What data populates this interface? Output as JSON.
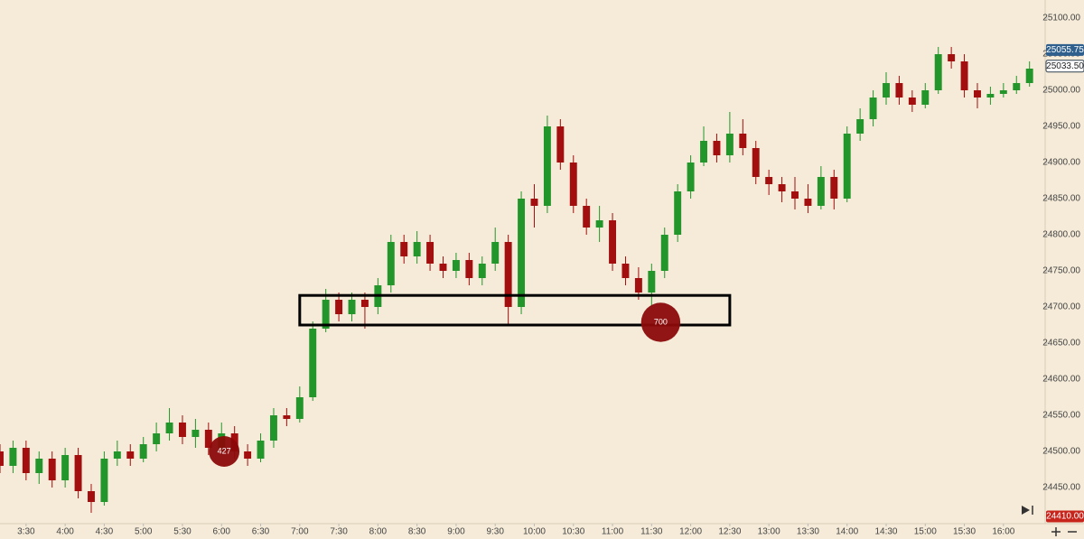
{
  "chart_data": {
    "type": "candlestick",
    "open": [
      24500,
      24480,
      24505,
      24470,
      24490,
      24460,
      24495,
      24445,
      24430,
      24490,
      24500,
      24490,
      24510,
      24525,
      24540,
      24520,
      24530,
      24505,
      24525,
      24500,
      24490,
      24515,
      24550,
      24545,
      24575,
      24670,
      24710,
      24690,
      24710,
      24700,
      24730,
      24790,
      24770,
      24790,
      24760,
      24750,
      24765,
      24740,
      24760,
      24790,
      24700,
      24850,
      24840,
      24950,
      24900,
      24840,
      24810,
      24820,
      24760,
      24740,
      24720,
      24750,
      24800,
      24860,
      24900,
      24930,
      24910,
      24940,
      24920,
      24880,
      24870,
      24860,
      24850,
      24840,
      24880,
      24850,
      24940,
      24960,
      24990,
      25010,
      24990,
      24980,
      25000,
      25050,
      25040,
      25000,
      24990,
      24995,
      25000,
      25010
    ],
    "high": [
      24510,
      24515,
      24515,
      24500,
      24500,
      24505,
      24505,
      24455,
      24500,
      24515,
      24510,
      24520,
      24540,
      24560,
      24550,
      24545,
      24540,
      24540,
      24535,
      24510,
      24525,
      24560,
      24560,
      24590,
      24680,
      24725,
      24720,
      24720,
      24720,
      24740,
      24800,
      24800,
      24805,
      24800,
      24770,
      24775,
      24775,
      24770,
      24810,
      24800,
      24860,
      24870,
      24965,
      24960,
      24910,
      24850,
      24840,
      24830,
      24770,
      24755,
      24760,
      24810,
      24870,
      24910,
      24950,
      24940,
      24970,
      24960,
      24930,
      24890,
      24880,
      24880,
      24870,
      24895,
      24890,
      24950,
      24975,
      25000,
      25025,
      25020,
      25000,
      25010,
      25060,
      25060,
      25050,
      25010,
      25005,
      25010,
      25020,
      25040
    ],
    "low": [
      24470,
      24470,
      24460,
      24455,
      24450,
      24450,
      24435,
      24415,
      24425,
      24480,
      24480,
      24485,
      24500,
      24515,
      24510,
      24505,
      24495,
      24495,
      24490,
      24480,
      24485,
      24505,
      24535,
      24540,
      24570,
      24665,
      24680,
      24680,
      24670,
      24690,
      24720,
      24760,
      24760,
      24750,
      24740,
      24740,
      24730,
      24730,
      24750,
      24675,
      24690,
      24810,
      24830,
      24890,
      24830,
      24800,
      24790,
      24750,
      24730,
      24710,
      24700,
      24740,
      24790,
      24850,
      24895,
      24900,
      24900,
      24910,
      24870,
      24855,
      24845,
      24835,
      24830,
      24835,
      24835,
      24845,
      24930,
      24950,
      24980,
      24980,
      24970,
      24975,
      24995,
      25030,
      24990,
      24975,
      24980,
      24990,
      24995,
      25005
    ],
    "close": [
      24480,
      24505,
      24470,
      24490,
      24460,
      24495,
      24445,
      24430,
      24490,
      24500,
      24490,
      24510,
      24525,
      24540,
      24520,
      24530,
      24505,
      24525,
      24500,
      24490,
      24515,
      24550,
      24545,
      24575,
      24670,
      24710,
      24690,
      24710,
      24700,
      24730,
      24790,
      24770,
      24790,
      24760,
      24750,
      24765,
      24740,
      24760,
      24790,
      24700,
      24850,
      24840,
      24950,
      24900,
      24840,
      24810,
      24820,
      24760,
      24740,
      24720,
      24750,
      24800,
      24860,
      24900,
      24930,
      24910,
      24940,
      24920,
      24880,
      24870,
      24860,
      24850,
      24840,
      24880,
      24850,
      24940,
      24960,
      24990,
      25010,
      24990,
      24980,
      25000,
      25050,
      25040,
      25000,
      24990,
      24995,
      25000,
      25010,
      25030
    ],
    "up_color": "#23962b",
    "down_color": "#a30e0e",
    "xlim": [
      0,
      80.2
    ],
    "xticks": [
      {
        "value": 2,
        "label": "3:30"
      },
      {
        "value": 5,
        "label": "4:00"
      },
      {
        "value": 8,
        "label": "4:30"
      },
      {
        "value": 11,
        "label": "5:00"
      },
      {
        "value": 14,
        "label": "5:30"
      },
      {
        "value": 17,
        "label": "6:00"
      },
      {
        "value": 20,
        "label": "6:30"
      },
      {
        "value": 23,
        "label": "7:00"
      },
      {
        "value": 26,
        "label": "7:30"
      },
      {
        "value": 29,
        "label": "8:00"
      },
      {
        "value": 32,
        "label": "8:30"
      },
      {
        "value": 35,
        "label": "9:00"
      },
      {
        "value": 38,
        "label": "9:30"
      },
      {
        "value": 41,
        "label": "10:00"
      },
      {
        "value": 44,
        "label": "10:30"
      },
      {
        "value": 47,
        "label": "11:00"
      },
      {
        "value": 50,
        "label": "11:30"
      },
      {
        "value": 53,
        "label": "12:00"
      },
      {
        "value": 56,
        "label": "12:30"
      },
      {
        "value": 59,
        "label": "13:00"
      },
      {
        "value": 62,
        "label": "13:30"
      },
      {
        "value": 65,
        "label": "14:00"
      },
      {
        "value": 68,
        "label": "14:30"
      },
      {
        "value": 71,
        "label": "15:00"
      },
      {
        "value": 74,
        "label": "15:30"
      },
      {
        "value": 77,
        "label": "16:00"
      }
    ],
    "ylim": [
      24400,
      25125
    ],
    "yticks": [
      {
        "value": 24450,
        "label": "24450.00"
      },
      {
        "value": 24500,
        "label": "24500.00"
      },
      {
        "value": 24550,
        "label": "24550.00"
      },
      {
        "value": 24600,
        "label": "24600.00"
      },
      {
        "value": 24650,
        "label": "24650.00"
      },
      {
        "value": 24700,
        "label": "24700.00"
      },
      {
        "value": 24750,
        "label": "24750.00"
      },
      {
        "value": 24800,
        "label": "24800.00"
      },
      {
        "value": 24850,
        "label": "24850.00"
      },
      {
        "value": 24900,
        "label": "24900.00"
      },
      {
        "value": 24950,
        "label": "24950.00"
      },
      {
        "value": 25000,
        "label": "25000.00"
      },
      {
        "value": 25050,
        "label": "25050.00"
      },
      {
        "value": 25100,
        "label": "25100.00"
      }
    ],
    "price_tags": [
      {
        "value": 25055.75,
        "label": "25055.75",
        "color": "#2f5f8c"
      },
      {
        "value": 25033.5,
        "label": "25033.50",
        "color": "#ffffff"
      },
      {
        "value": 24410,
        "label": "24410.00",
        "color": "#c7241c"
      }
    ],
    "bubbles": [
      {
        "x": 17.2,
        "y": 24500,
        "size": 427
      },
      {
        "x": 50.7,
        "y": 24678.75,
        "size": 700
      }
    ],
    "zone": {
      "x": [
        23,
        56
      ],
      "y": [
        24675,
        24716
      ]
    }
  }
}
